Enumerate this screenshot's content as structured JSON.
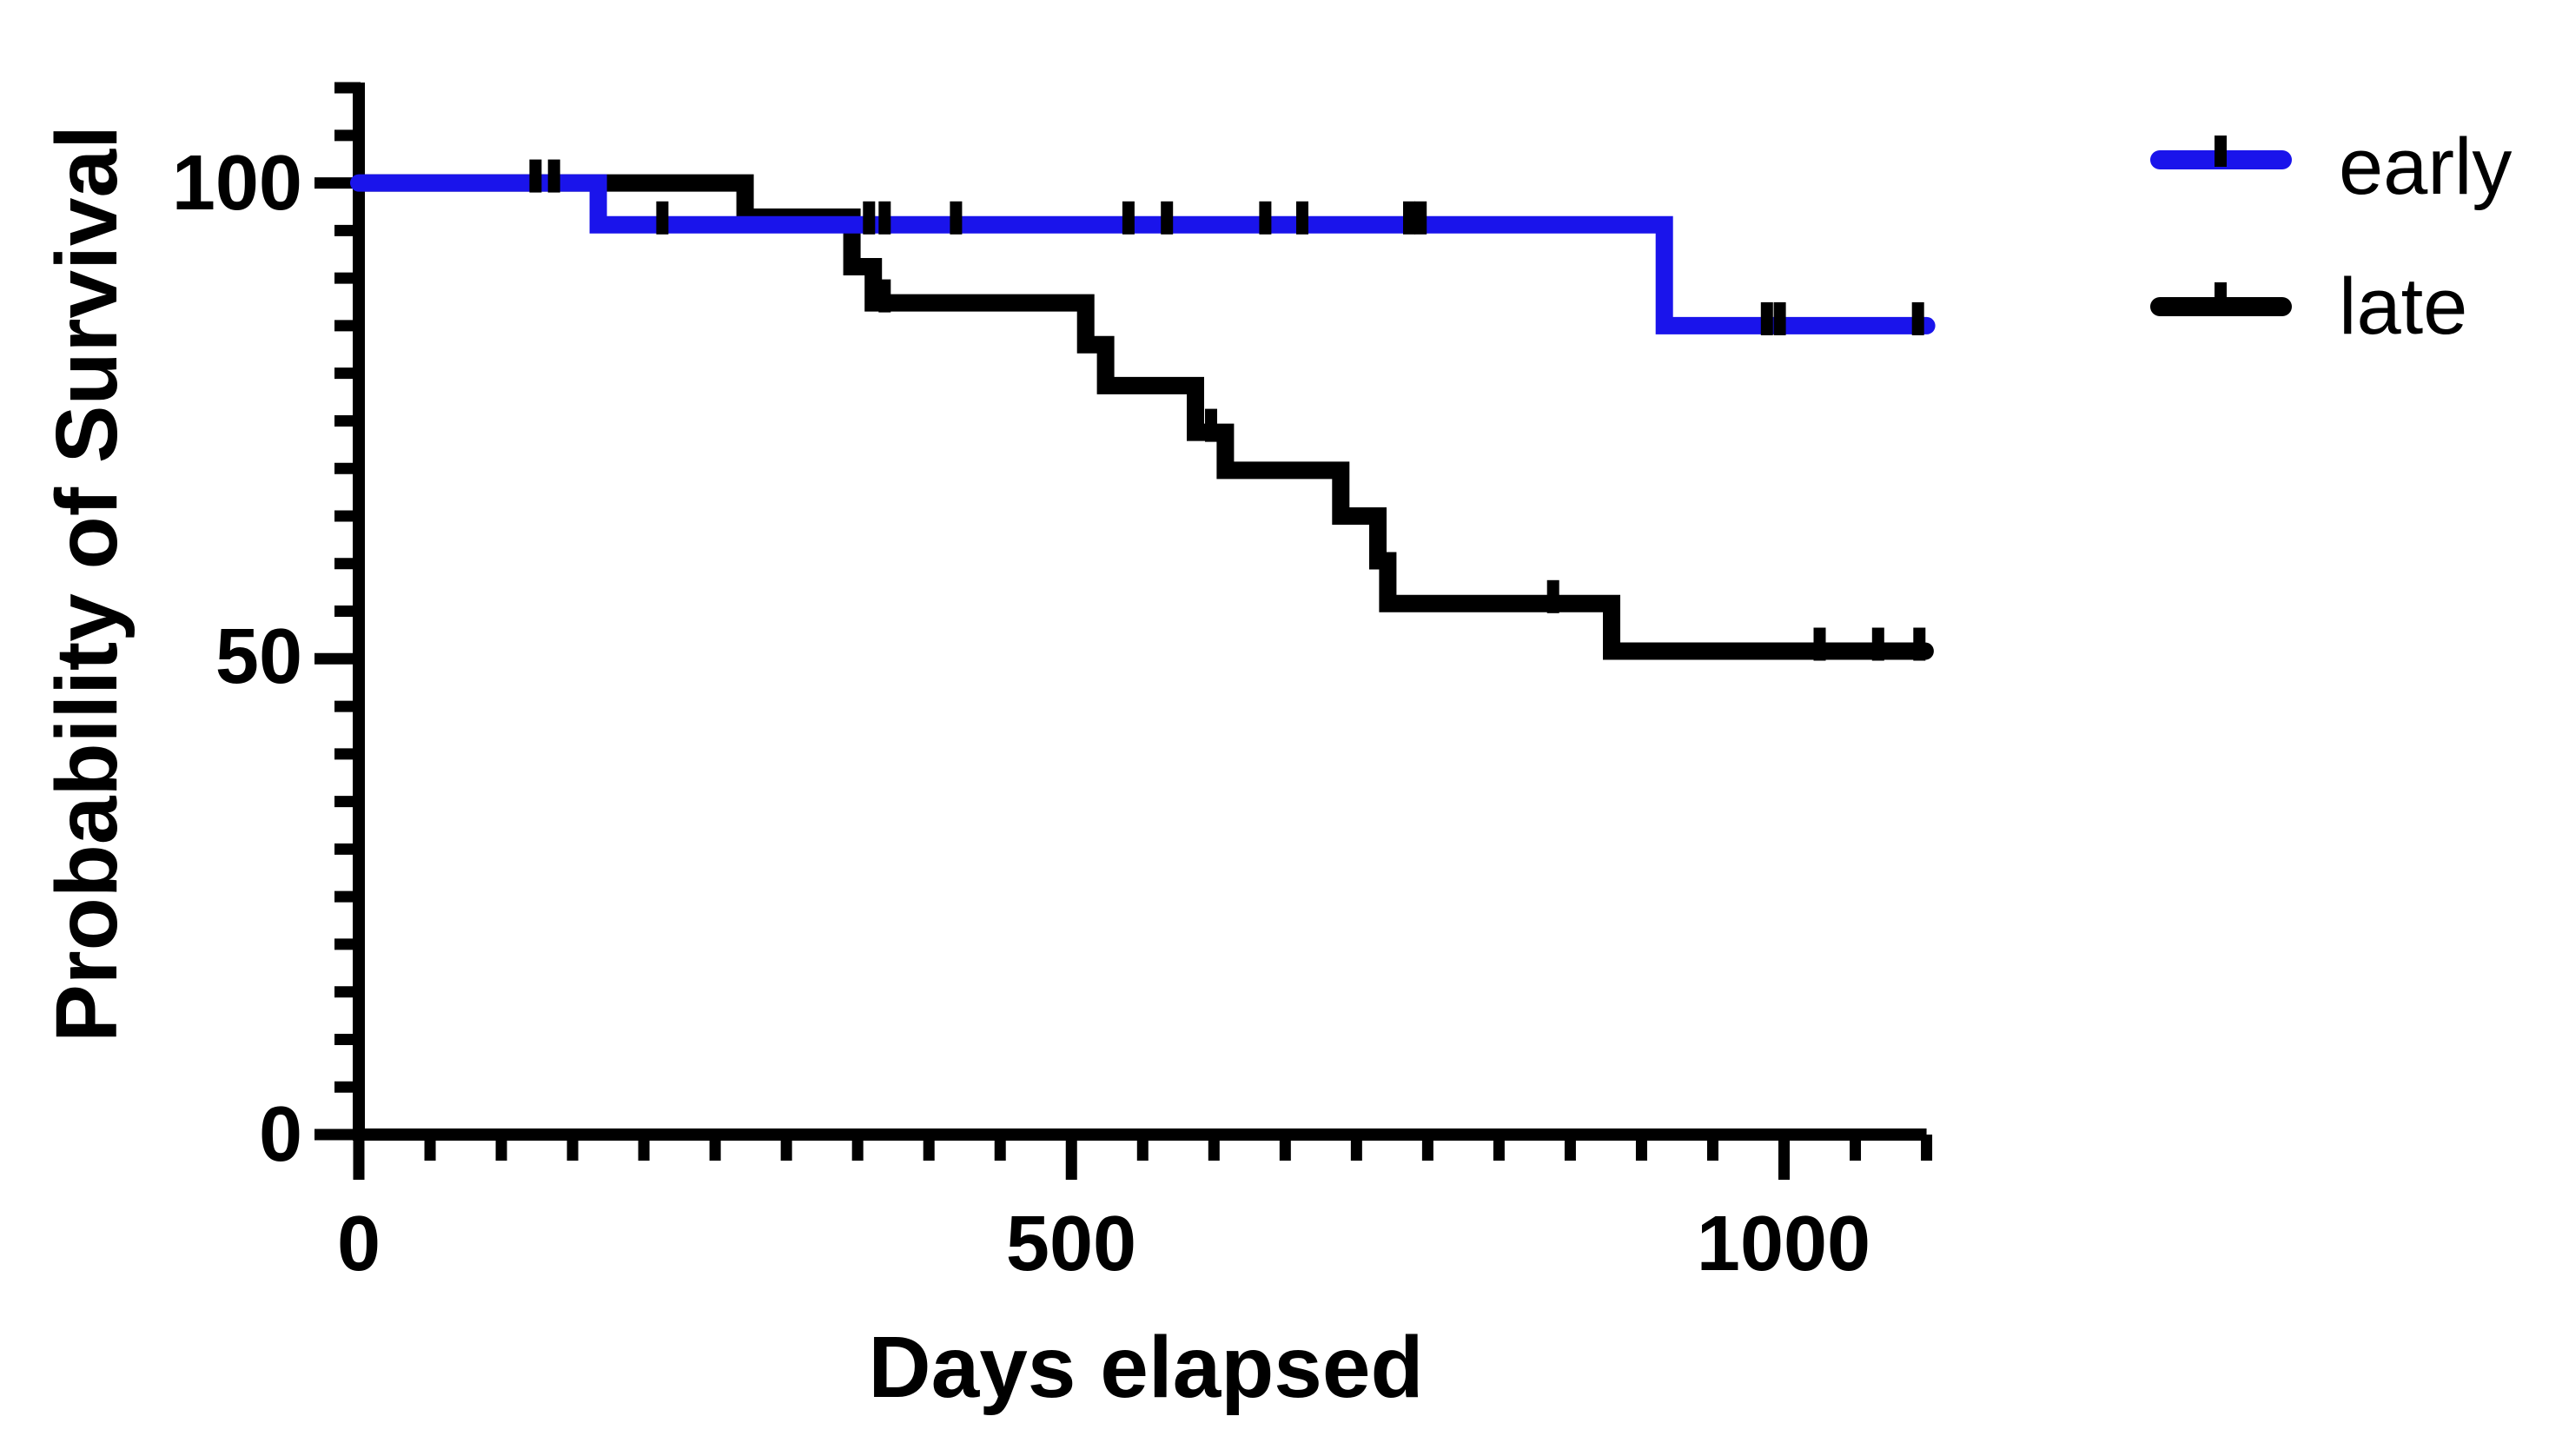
{
  "page": {
    "background_color": "#ffffff",
    "title": ""
  },
  "chart_data": {
    "type": "line",
    "subtype": "kaplan-meier-survival-step",
    "title": "",
    "xlabel": "Days elapsed",
    "ylabel": "Probability of Survival",
    "xlim": [
      0,
      1100
    ],
    "ylim": [
      0,
      110
    ],
    "grid": false,
    "x_major_ticks": [
      0,
      500,
      1000
    ],
    "x_ticklabels": [
      "0",
      "500",
      "1000"
    ],
    "x_minor_tick_interval": 50,
    "y_major_ticks": [
      0,
      50,
      100
    ],
    "y_ticklabels": [
      "0",
      "50",
      "100"
    ],
    "y_minor_tick_interval": 5,
    "axis_color": "#000000",
    "censor_tick_color": "#000000",
    "legend_position": "top-right",
    "series": [
      {
        "name": "late",
        "color": "#000000",
        "steps": [
          [
            0,
            100
          ],
          [
            271,
            100
          ],
          [
            271,
            96.4
          ],
          [
            346,
            96.4
          ],
          [
            346,
            91.2
          ],
          [
            361,
            91.2
          ],
          [
            361,
            87.4
          ],
          [
            510,
            87.4
          ],
          [
            510,
            83.0
          ],
          [
            524,
            83.0
          ],
          [
            524,
            78.7
          ],
          [
            587,
            78.7
          ],
          [
            587,
            73.8
          ],
          [
            608,
            73.8
          ],
          [
            608,
            69.8
          ],
          [
            689,
            69.8
          ],
          [
            689,
            65.0
          ],
          [
            715,
            65.0
          ],
          [
            715,
            60.3
          ],
          [
            722,
            60.3
          ],
          [
            722,
            55.8
          ],
          [
            879,
            55.8
          ],
          [
            879,
            50.8
          ],
          [
            1099,
            50.8
          ]
        ],
        "censor_marks": [
          [
            369,
            87.4
          ],
          [
            598,
            73.8
          ],
          [
            838,
            55.8
          ],
          [
            1025,
            50.8
          ],
          [
            1066,
            50.8
          ],
          [
            1095,
            50.8
          ]
        ]
      },
      {
        "name": "early",
        "color": "#1a14eb",
        "steps": [
          [
            0,
            100
          ],
          [
            168,
            100
          ],
          [
            168,
            95.6
          ],
          [
            916,
            95.6
          ],
          [
            916,
            85.0
          ],
          [
            1100,
            85.0
          ]
        ],
        "censor_marks": [
          [
            124,
            100
          ],
          [
            137,
            100
          ],
          [
            213,
            95.6
          ],
          [
            358,
            95.6
          ],
          [
            369,
            95.6
          ],
          [
            419,
            95.6
          ],
          [
            540,
            95.6
          ],
          [
            567,
            95.6
          ],
          [
            636,
            95.6
          ],
          [
            662,
            95.6
          ],
          [
            737,
            95.6
          ],
          [
            745,
            95.6
          ],
          [
            988,
            85.0
          ],
          [
            997,
            85.0
          ],
          [
            1094,
            85.0
          ]
        ]
      }
    ]
  },
  "legend": {
    "items": [
      {
        "label": "early",
        "color": "#1a14eb"
      },
      {
        "label": "late",
        "color": "#000000"
      }
    ]
  }
}
